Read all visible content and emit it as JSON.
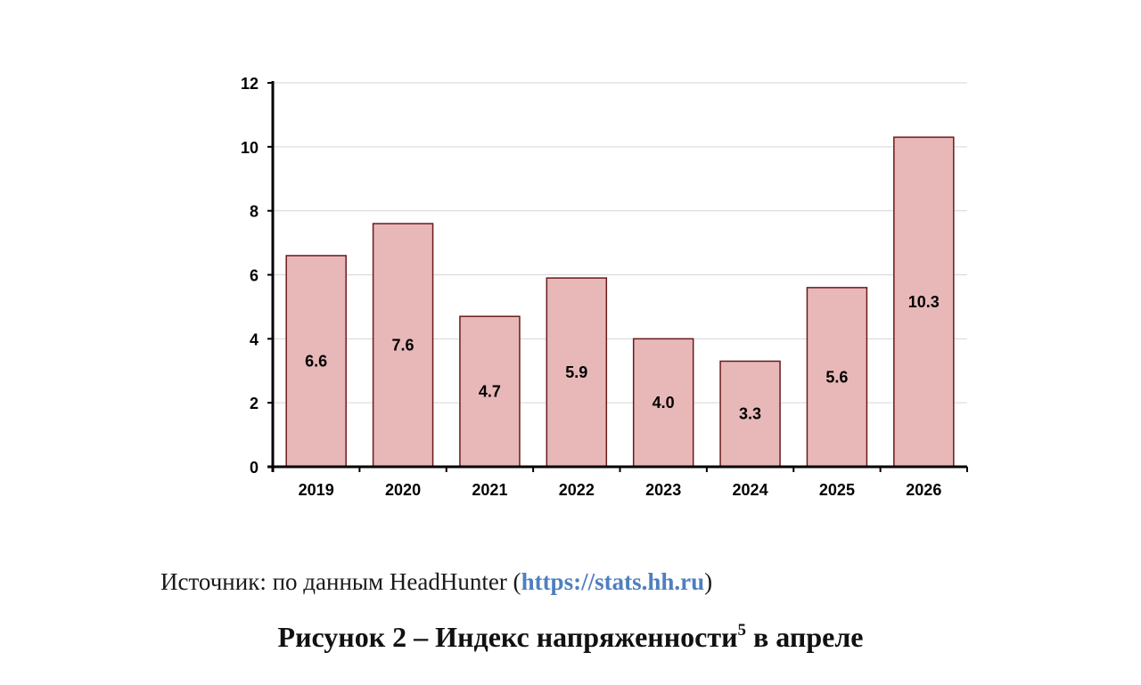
{
  "chart_data": {
    "type": "bar",
    "categories": [
      "2019",
      "2020",
      "2021",
      "2022",
      "2023",
      "2024",
      "2025",
      "2026"
    ],
    "values": [
      6.6,
      7.6,
      4.7,
      5.9,
      4.0,
      3.3,
      5.6,
      10.3
    ],
    "value_labels": [
      "6.6",
      "7.6",
      "4.7",
      "5.9",
      "4.0",
      "3.3",
      "5.6",
      "10.3"
    ],
    "ylim": [
      0,
      12
    ],
    "yticks": [
      "0",
      "2",
      "4",
      "6",
      "8",
      "10",
      "12"
    ],
    "grid": true,
    "legend": "none",
    "xlabel": "",
    "ylabel": "",
    "colors": {
      "bar_fill": "#e8b8b8",
      "bar_stroke": "#6b1a1a",
      "grid": "#d6d6d6",
      "axis": "#000000"
    }
  },
  "source": {
    "prefix": "Источник: по данным HeadHunter (",
    "link": "https://stats.hh.ru",
    "suffix": ")"
  },
  "caption": {
    "main": "Рисунок 2  – Индекс напряженности",
    "superscript": "5",
    "tail": " в апреле"
  }
}
